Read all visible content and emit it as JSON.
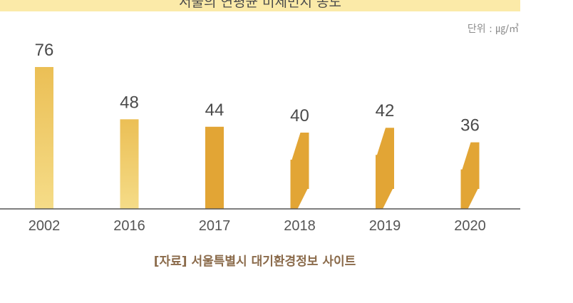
{
  "title": "서울의 연평균 미세먼지 농도",
  "unit_label": "단위 : ㎍/㎥",
  "source": "[자료] 서울특별시 대기환경정보 사이트",
  "colors": {
    "bar_light": "#f1cf6b",
    "bar_dark": "#e2a535",
    "axis": "#555555",
    "value_text": "#4a4a4a",
    "tick_text": "#555555"
  },
  "chart_data": {
    "type": "bar",
    "title": "서울의 연평균 미세먼지 농도",
    "xlabel": "",
    "ylabel": "",
    "unit": "단위 : ㎍/㎥",
    "categories": [
      "2002",
      "2016",
      "2017",
      "2018",
      "2019",
      "2020"
    ],
    "values": [
      76,
      48,
      44,
      40,
      42,
      36
    ],
    "ylim": [
      0,
      80
    ],
    "axis_break": [
      false,
      false,
      false,
      true,
      true,
      true
    ],
    "grid": false,
    "legend": "none"
  }
}
